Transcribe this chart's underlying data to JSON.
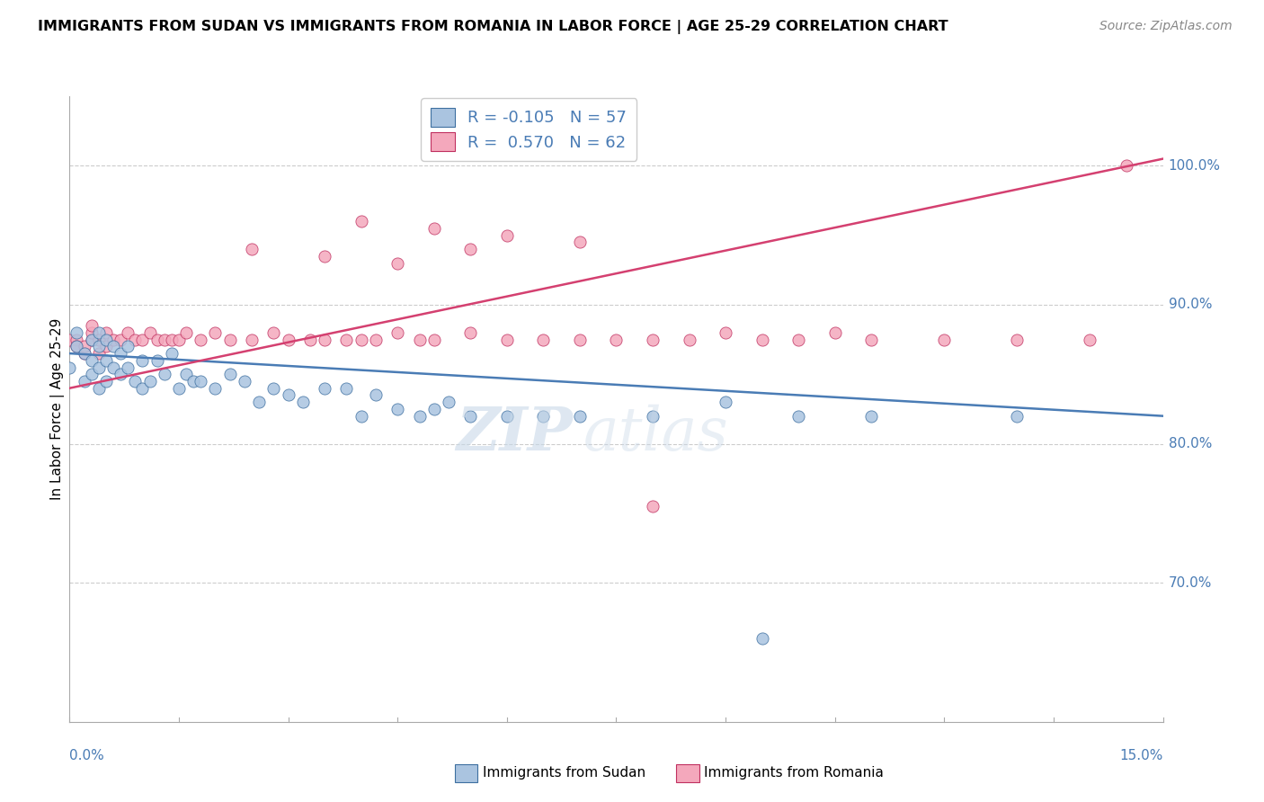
{
  "title": "IMMIGRANTS FROM SUDAN VS IMMIGRANTS FROM ROMANIA IN LABOR FORCE | AGE 25-29 CORRELATION CHART",
  "source": "Source: ZipAtlas.com",
  "ylabel_label": "In Labor Force | Age 25-29",
  "legend_r_sudan": "-0.105",
  "legend_n_sudan": "57",
  "legend_r_romania": "0.570",
  "legend_n_romania": "62",
  "sudan_color": "#aac4e0",
  "romania_color": "#f4a8bc",
  "sudan_line_color": "#4a7cb5",
  "romania_line_color": "#d44070",
  "sudan_edge_color": "#3d6fa0",
  "romania_edge_color": "#c03060",
  "sudan_points_x": [
    0.0,
    0.001,
    0.001,
    0.002,
    0.002,
    0.003,
    0.003,
    0.003,
    0.004,
    0.004,
    0.004,
    0.004,
    0.005,
    0.005,
    0.005,
    0.006,
    0.006,
    0.007,
    0.007,
    0.008,
    0.008,
    0.009,
    0.01,
    0.01,
    0.011,
    0.012,
    0.013,
    0.014,
    0.015,
    0.016,
    0.017,
    0.018,
    0.02,
    0.022,
    0.024,
    0.026,
    0.028,
    0.03,
    0.032,
    0.035,
    0.038,
    0.04,
    0.042,
    0.045,
    0.048,
    0.05,
    0.052,
    0.055,
    0.06,
    0.065,
    0.07,
    0.08,
    0.09,
    0.1,
    0.11,
    0.13,
    0.095
  ],
  "sudan_points_y": [
    0.855,
    0.87,
    0.88,
    0.865,
    0.845,
    0.875,
    0.86,
    0.85,
    0.88,
    0.87,
    0.855,
    0.84,
    0.875,
    0.86,
    0.845,
    0.87,
    0.855,
    0.865,
    0.85,
    0.87,
    0.855,
    0.845,
    0.86,
    0.84,
    0.845,
    0.86,
    0.85,
    0.865,
    0.84,
    0.85,
    0.845,
    0.845,
    0.84,
    0.85,
    0.845,
    0.83,
    0.84,
    0.835,
    0.83,
    0.84,
    0.84,
    0.82,
    0.835,
    0.825,
    0.82,
    0.825,
    0.83,
    0.82,
    0.82,
    0.82,
    0.82,
    0.82,
    0.83,
    0.82,
    0.82,
    0.82,
    0.66
  ],
  "romania_points_x": [
    0.0,
    0.001,
    0.001,
    0.002,
    0.002,
    0.003,
    0.003,
    0.003,
    0.004,
    0.004,
    0.005,
    0.005,
    0.006,
    0.007,
    0.008,
    0.009,
    0.01,
    0.011,
    0.012,
    0.013,
    0.014,
    0.015,
    0.016,
    0.018,
    0.02,
    0.022,
    0.025,
    0.028,
    0.03,
    0.033,
    0.035,
    0.038,
    0.04,
    0.042,
    0.045,
    0.048,
    0.05,
    0.055,
    0.06,
    0.065,
    0.07,
    0.075,
    0.08,
    0.085,
    0.09,
    0.095,
    0.1,
    0.105,
    0.11,
    0.12,
    0.13,
    0.14,
    0.025,
    0.035,
    0.045,
    0.055,
    0.04,
    0.05,
    0.06,
    0.07,
    0.08,
    0.145
  ],
  "romania_points_y": [
    0.875,
    0.875,
    0.87,
    0.865,
    0.87,
    0.875,
    0.88,
    0.885,
    0.875,
    0.865,
    0.88,
    0.87,
    0.875,
    0.875,
    0.88,
    0.875,
    0.875,
    0.88,
    0.875,
    0.875,
    0.875,
    0.875,
    0.88,
    0.875,
    0.88,
    0.875,
    0.875,
    0.88,
    0.875,
    0.875,
    0.875,
    0.875,
    0.875,
    0.875,
    0.88,
    0.875,
    0.875,
    0.88,
    0.875,
    0.875,
    0.875,
    0.875,
    0.875,
    0.875,
    0.88,
    0.875,
    0.875,
    0.88,
    0.875,
    0.875,
    0.875,
    0.875,
    0.94,
    0.935,
    0.93,
    0.94,
    0.96,
    0.955,
    0.95,
    0.945,
    0.755,
    1.0
  ],
  "xlim": [
    0.0,
    0.15
  ],
  "ylim": [
    0.6,
    1.05
  ],
  "yticks": [
    0.7,
    0.8,
    0.9,
    1.0
  ],
  "ytick_labels": [
    "70.0%",
    "80.0%",
    "90.0%",
    "100.0%"
  ],
  "sudan_trend_x": [
    0.0,
    0.15
  ],
  "sudan_trend_y": [
    0.865,
    0.82
  ],
  "romania_trend_x": [
    0.0,
    0.15
  ],
  "romania_trend_y": [
    0.84,
    1.005
  ]
}
